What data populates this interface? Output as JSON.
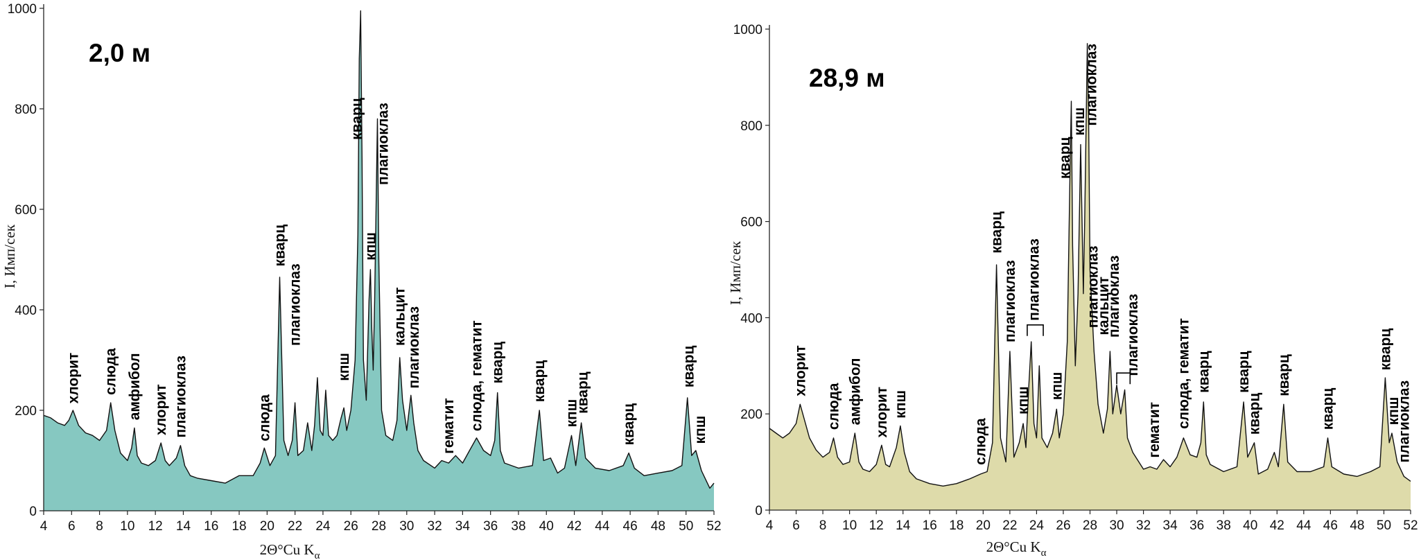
{
  "figure": {
    "x_axis_label_main": "2Θ°Cu K",
    "x_axis_label_sub": "α",
    "y_axis_label": "I, Имп/сек"
  },
  "colors": {
    "left_fill": "#86c8c1",
    "right_fill": "#dedbaa",
    "line": "#111111",
    "axis": "#222222"
  },
  "chart_data": [
    {
      "type": "area",
      "title": "2,0 м",
      "xlabel": "2Θ°Cu Kα",
      "ylabel": "I, Имп/сек",
      "xlim": [
        4,
        52
      ],
      "ylim": [
        0,
        1000
      ],
      "x_ticks": [
        4,
        6,
        8,
        10,
        12,
        14,
        16,
        18,
        20,
        22,
        24,
        26,
        28,
        30,
        32,
        34,
        36,
        38,
        40,
        42,
        44,
        46,
        48,
        50,
        52
      ],
      "y_ticks": [
        0,
        200,
        400,
        600,
        800,
        1000
      ],
      "fill_color": "#86c8c1",
      "points": [
        [
          4.0,
          190
        ],
        [
          4.5,
          185
        ],
        [
          5.0,
          175
        ],
        [
          5.5,
          170
        ],
        [
          5.8,
          180
        ],
        [
          6.1,
          200
        ],
        [
          6.5,
          170
        ],
        [
          7.0,
          155
        ],
        [
          7.5,
          150
        ],
        [
          8.0,
          140
        ],
        [
          8.5,
          160
        ],
        [
          8.8,
          215
        ],
        [
          9.1,
          160
        ],
        [
          9.5,
          115
        ],
        [
          10.0,
          100
        ],
        [
          10.3,
          125
        ],
        [
          10.5,
          165
        ],
        [
          10.7,
          110
        ],
        [
          11.0,
          95
        ],
        [
          11.5,
          90
        ],
        [
          12.0,
          100
        ],
        [
          12.4,
          135
        ],
        [
          12.7,
          100
        ],
        [
          13.0,
          90
        ],
        [
          13.5,
          105
        ],
        [
          13.8,
          130
        ],
        [
          14.1,
          90
        ],
        [
          14.5,
          70
        ],
        [
          15.0,
          65
        ],
        [
          16.0,
          60
        ],
        [
          17.0,
          55
        ],
        [
          18.0,
          70
        ],
        [
          19.0,
          70
        ],
        [
          19.5,
          95
        ],
        [
          19.8,
          125
        ],
        [
          20.2,
          90
        ],
        [
          20.6,
          110
        ],
        [
          20.9,
          465
        ],
        [
          21.2,
          140
        ],
        [
          21.5,
          110
        ],
        [
          21.8,
          140
        ],
        [
          22.0,
          215
        ],
        [
          22.2,
          110
        ],
        [
          22.6,
          120
        ],
        [
          22.9,
          175
        ],
        [
          23.2,
          120
        ],
        [
          23.4,
          170
        ],
        [
          23.6,
          265
        ],
        [
          23.8,
          160
        ],
        [
          24.0,
          150
        ],
        [
          24.2,
          240
        ],
        [
          24.4,
          150
        ],
        [
          24.7,
          140
        ],
        [
          25.0,
          150
        ],
        [
          25.3,
          185
        ],
        [
          25.5,
          205
        ],
        [
          25.7,
          160
        ],
        [
          26.0,
          200
        ],
        [
          26.3,
          300
        ],
        [
          26.5,
          550
        ],
        [
          26.6,
          900
        ],
        [
          26.7,
          995
        ],
        [
          26.8,
          700
        ],
        [
          26.9,
          300
        ],
        [
          27.1,
          220
        ],
        [
          27.3,
          420
        ],
        [
          27.4,
          480
        ],
        [
          27.5,
          360
        ],
        [
          27.6,
          280
        ],
        [
          27.7,
          420
        ],
        [
          27.8,
          600
        ],
        [
          27.9,
          780
        ],
        [
          28.0,
          500
        ],
        [
          28.2,
          200
        ],
        [
          28.5,
          150
        ],
        [
          29.0,
          140
        ],
        [
          29.3,
          180
        ],
        [
          29.5,
          305
        ],
        [
          29.7,
          220
        ],
        [
          30.0,
          160
        ],
        [
          30.3,
          230
        ],
        [
          30.5,
          175
        ],
        [
          30.8,
          120
        ],
        [
          31.2,
          100
        ],
        [
          32.0,
          85
        ],
        [
          32.5,
          100
        ],
        [
          33.0,
          95
        ],
        [
          33.5,
          110
        ],
        [
          34.0,
          95
        ],
        [
          34.5,
          120
        ],
        [
          35.0,
          145
        ],
        [
          35.5,
          120
        ],
        [
          36.0,
          110
        ],
        [
          36.3,
          140
        ],
        [
          36.5,
          235
        ],
        [
          36.7,
          120
        ],
        [
          37.0,
          95
        ],
        [
          38.0,
          85
        ],
        [
          39.0,
          90
        ],
        [
          39.5,
          200
        ],
        [
          39.8,
          100
        ],
        [
          40.3,
          105
        ],
        [
          40.8,
          75
        ],
        [
          41.3,
          85
        ],
        [
          41.8,
          150
        ],
        [
          42.1,
          90
        ],
        [
          42.5,
          175
        ],
        [
          42.8,
          105
        ],
        [
          43.5,
          85
        ],
        [
          44.5,
          80
        ],
        [
          45.5,
          90
        ],
        [
          45.9,
          115
        ],
        [
          46.3,
          85
        ],
        [
          47.0,
          70
        ],
        [
          48.0,
          75
        ],
        [
          49.0,
          80
        ],
        [
          49.7,
          90
        ],
        [
          50.1,
          225
        ],
        [
          50.4,
          110
        ],
        [
          50.7,
          120
        ],
        [
          51.1,
          80
        ],
        [
          51.7,
          45
        ],
        [
          52.0,
          55
        ]
      ],
      "annotations": [
        {
          "text": "хлорит",
          "x": 6.1,
          "y": 205
        },
        {
          "text": "слюда",
          "x": 8.8,
          "y": 222
        },
        {
          "text": "амфибол",
          "x": 10.5,
          "y": 172
        },
        {
          "text": "хлорит",
          "x": 12.4,
          "y": 142
        },
        {
          "text": "плагиоклаз",
          "x": 13.8,
          "y": 137
        },
        {
          "text": "слюда",
          "x": 19.8,
          "y": 130
        },
        {
          "text": "кварц",
          "x": 20.9,
          "y": 478
        },
        {
          "text": "плагиоклаз",
          "x": 22.0,
          "y": 320
        },
        {
          "text": "кпш",
          "x": 25.5,
          "y": 250
        },
        {
          "text": "кварц",
          "x": 26.4,
          "y": 730
        },
        {
          "text": "кпш",
          "x": 27.4,
          "y": 490
        },
        {
          "text": "плагиоклаз",
          "x": 28.3,
          "y": 640
        },
        {
          "text": "кальцит",
          "x": 29.5,
          "y": 320
        },
        {
          "text": "плагиоклаз",
          "x": 30.5,
          "y": 235
        },
        {
          "text": "гематит",
          "x": 33.0,
          "y": 105
        },
        {
          "text": "слюда, гематит",
          "x": 35.0,
          "y": 150
        },
        {
          "text": "кварц",
          "x": 36.5,
          "y": 245
        },
        {
          "text": "кварц",
          "x": 39.5,
          "y": 208
        },
        {
          "text": "кпш",
          "x": 41.8,
          "y": 158
        },
        {
          "text": "кварц",
          "x": 42.6,
          "y": 185
        },
        {
          "text": "кварц",
          "x": 45.9,
          "y": 122
        },
        {
          "text": "кварц",
          "x": 50.2,
          "y": 237
        },
        {
          "text": "кпш",
          "x": 51.0,
          "y": 125
        }
      ]
    },
    {
      "type": "area",
      "title": "28,9 м",
      "xlabel": "2Θ°Cu Kα",
      "ylabel": "I, Имп/сек",
      "xlim": [
        4,
        52
      ],
      "ylim": [
        0,
        1000
      ],
      "x_ticks": [
        4,
        6,
        8,
        10,
        12,
        14,
        16,
        18,
        20,
        22,
        24,
        26,
        28,
        30,
        32,
        34,
        36,
        38,
        40,
        42,
        44,
        46,
        48,
        50,
        52
      ],
      "y_ticks": [
        0,
        200,
        400,
        600,
        800,
        1000
      ],
      "fill_color": "#dedbaa",
      "points": [
        [
          4.0,
          170
        ],
        [
          4.5,
          160
        ],
        [
          5.0,
          150
        ],
        [
          5.5,
          160
        ],
        [
          6.0,
          180
        ],
        [
          6.3,
          220
        ],
        [
          6.7,
          180
        ],
        [
          7.0,
          150
        ],
        [
          7.5,
          125
        ],
        [
          8.0,
          110
        ],
        [
          8.5,
          120
        ],
        [
          8.8,
          150
        ],
        [
          9.1,
          110
        ],
        [
          9.5,
          95
        ],
        [
          10.0,
          100
        ],
        [
          10.4,
          160
        ],
        [
          10.7,
          100
        ],
        [
          11.0,
          85
        ],
        [
          11.5,
          80
        ],
        [
          12.0,
          95
        ],
        [
          12.4,
          135
        ],
        [
          12.7,
          95
        ],
        [
          13.0,
          90
        ],
        [
          13.5,
          130
        ],
        [
          13.8,
          175
        ],
        [
          14.1,
          120
        ],
        [
          14.5,
          80
        ],
        [
          15.0,
          65
        ],
        [
          16.0,
          55
        ],
        [
          17.0,
          50
        ],
        [
          18.0,
          55
        ],
        [
          19.0,
          65
        ],
        [
          19.8,
          75
        ],
        [
          20.3,
          80
        ],
        [
          20.7,
          140
        ],
        [
          21.0,
          510
        ],
        [
          21.3,
          150
        ],
        [
          21.7,
          100
        ],
        [
          22.0,
          330
        ],
        [
          22.3,
          110
        ],
        [
          22.7,
          140
        ],
        [
          23.0,
          180
        ],
        [
          23.2,
          130
        ],
        [
          23.4,
          250
        ],
        [
          23.6,
          350
        ],
        [
          23.8,
          180
        ],
        [
          24.0,
          150
        ],
        [
          24.2,
          300
        ],
        [
          24.4,
          150
        ],
        [
          24.8,
          130
        ],
        [
          25.2,
          160
        ],
        [
          25.5,
          210
        ],
        [
          25.7,
          150
        ],
        [
          26.0,
          200
        ],
        [
          26.3,
          350
        ],
        [
          26.5,
          700
        ],
        [
          26.6,
          850
        ],
        [
          26.7,
          550
        ],
        [
          26.9,
          300
        ],
        [
          27.1,
          450
        ],
        [
          27.3,
          760
        ],
        [
          27.5,
          450
        ],
        [
          27.6,
          600
        ],
        [
          27.8,
          970
        ],
        [
          27.9,
          800
        ],
        [
          28.0,
          500
        ],
        [
          28.3,
          330
        ],
        [
          28.6,
          220
        ],
        [
          29.0,
          160
        ],
        [
          29.3,
          210
        ],
        [
          29.5,
          330
        ],
        [
          29.7,
          200
        ],
        [
          30.0,
          260
        ],
        [
          30.3,
          200
        ],
        [
          30.6,
          250
        ],
        [
          30.8,
          150
        ],
        [
          31.2,
          120
        ],
        [
          32.0,
          85
        ],
        [
          32.5,
          90
        ],
        [
          33.0,
          85
        ],
        [
          33.5,
          105
        ],
        [
          34.0,
          90
        ],
        [
          34.5,
          110
        ],
        [
          35.0,
          150
        ],
        [
          35.5,
          115
        ],
        [
          36.0,
          110
        ],
        [
          36.3,
          140
        ],
        [
          36.5,
          225
        ],
        [
          36.7,
          115
        ],
        [
          37.0,
          95
        ],
        [
          38.0,
          80
        ],
        [
          39.0,
          90
        ],
        [
          39.5,
          225
        ],
        [
          39.8,
          110
        ],
        [
          40.3,
          140
        ],
        [
          40.6,
          75
        ],
        [
          41.3,
          85
        ],
        [
          41.8,
          120
        ],
        [
          42.1,
          90
        ],
        [
          42.5,
          220
        ],
        [
          42.8,
          100
        ],
        [
          43.5,
          80
        ],
        [
          44.5,
          80
        ],
        [
          45.5,
          90
        ],
        [
          45.8,
          150
        ],
        [
          46.1,
          90
        ],
        [
          47.0,
          75
        ],
        [
          48.0,
          70
        ],
        [
          49.0,
          80
        ],
        [
          49.7,
          90
        ],
        [
          50.1,
          275
        ],
        [
          50.4,
          140
        ],
        [
          50.6,
          160
        ],
        [
          51.0,
          100
        ],
        [
          51.5,
          70
        ],
        [
          52.0,
          60
        ]
      ],
      "annotations": [
        {
          "text": "хлорит",
          "x": 6.3,
          "y": 228
        },
        {
          "text": "слюда",
          "x": 8.8,
          "y": 158
        },
        {
          "text": "амфибол",
          "x": 10.4,
          "y": 168
        },
        {
          "text": "хлорит",
          "x": 12.4,
          "y": 142
        },
        {
          "text": "кпш",
          "x": 13.8,
          "y": 182
        },
        {
          "text": "слюда",
          "x": 19.8,
          "y": 85
        },
        {
          "text": "кварц",
          "x": 21.0,
          "y": 525
        },
        {
          "text": "плагиоклаз",
          "x": 22.0,
          "y": 340
        },
        {
          "text": "кпш",
          "x": 23.0,
          "y": 190
        },
        {
          "text": "плагиоклаз",
          "x": 23.8,
          "y": 385
        },
        {
          "text": "кпш",
          "x": 25.5,
          "y": 220
        },
        {
          "text": "кварц",
          "x": 26.1,
          "y": 680
        },
        {
          "text": "кпш",
          "x": 27.2,
          "y": 770
        },
        {
          "text": "плагиоклаз",
          "x": 28.1,
          "y": 790
        },
        {
          "text": "плагиоклаз",
          "x": 28.2,
          "y": 370
        },
        {
          "text": "кальцит",
          "x": 29.0,
          "y": 355
        },
        {
          "text": "плагиоклаз",
          "x": 29.8,
          "y": 350
        },
        {
          "text": "плагиоклаз",
          "x": 31.2,
          "y": 270
        },
        {
          "text": "гематит",
          "x": 32.8,
          "y": 100
        },
        {
          "text": "слюда, гематит",
          "x": 35.0,
          "y": 160
        },
        {
          "text": "кварц",
          "x": 36.5,
          "y": 235
        },
        {
          "text": "кварц",
          "x": 39.5,
          "y": 235
        },
        {
          "text": "кварц",
          "x": 40.3,
          "y": 148
        },
        {
          "text": "кварц",
          "x": 42.5,
          "y": 228
        },
        {
          "text": "кварц",
          "x": 45.8,
          "y": 158
        },
        {
          "text": "кварц",
          "x": 50.1,
          "y": 282
        },
        {
          "text": "кпш",
          "x": 50.7,
          "y": 168
        },
        {
          "text": "плагиоклаз",
          "x": 51.5,
          "y": 90
        }
      ],
      "brackets": [
        {
          "x1": 23.3,
          "x2": 24.5,
          "y": 385
        },
        {
          "x1": 30.0,
          "x2": 31.0,
          "y": 285
        }
      ]
    }
  ]
}
